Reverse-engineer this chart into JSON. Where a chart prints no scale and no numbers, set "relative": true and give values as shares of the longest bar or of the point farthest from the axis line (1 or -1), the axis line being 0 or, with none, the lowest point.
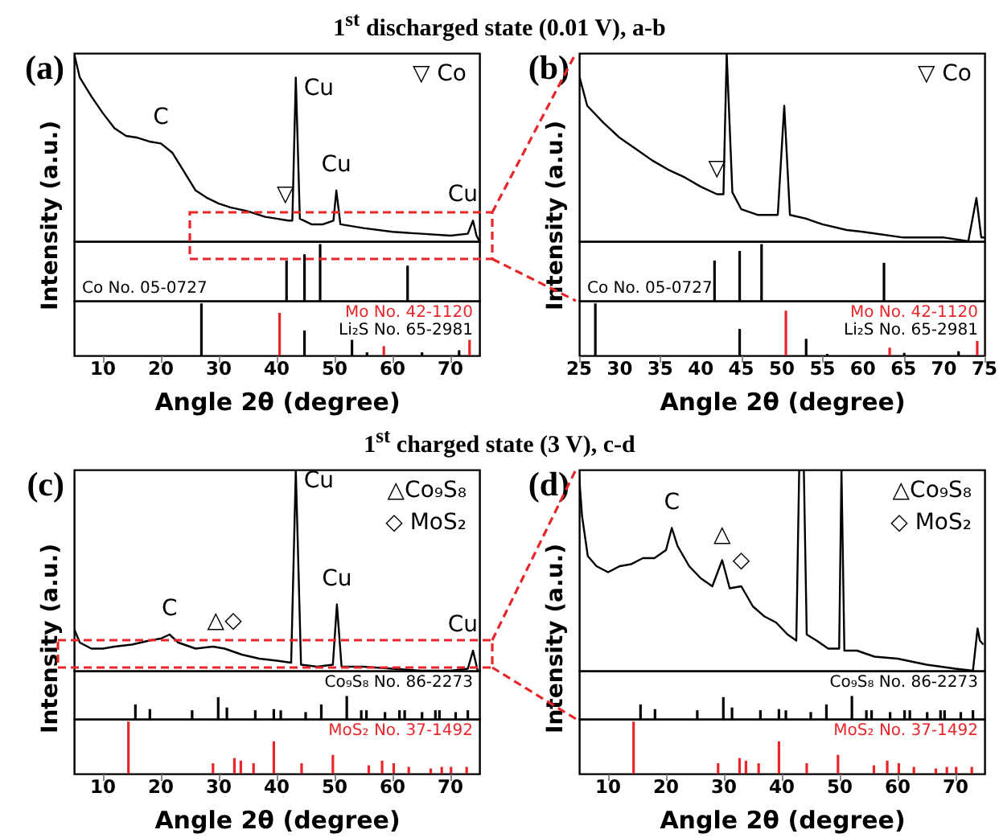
{
  "chart_data": [
    {
      "type": "line",
      "relative": true,
      "title": "1$^{st}$ discharged state (0.01 V), a-b",
      "ylabel": "Intensity (a.u.)",
      "xlim": [
        5,
        75
      ],
      "tick_labels": false,
      "x": [
        5,
        6,
        8,
        10,
        12,
        14,
        16,
        18,
        20,
        22,
        24,
        26,
        28,
        30,
        32,
        35,
        38,
        40,
        42,
        42.7,
        43.3,
        44.0,
        46,
        48,
        49.8,
        50.3,
        51,
        55,
        60,
        65,
        70,
        73,
        73.9,
        74.5,
        75
      ],
      "series": [
        {
          "color": "#000000",
          "values": [
            1.0,
            0.87,
            0.77,
            0.68,
            0.6,
            0.56,
            0.55,
            0.53,
            0.52,
            0.47,
            0.37,
            0.27,
            0.23,
            0.2,
            0.18,
            0.16,
            0.13,
            0.12,
            0.11,
            0.11,
            0.87,
            0.12,
            0.09,
            0.09,
            0.11,
            0.27,
            0.09,
            0.07,
            0.05,
            0.04,
            0.03,
            0.04,
            0.11,
            0.03,
            0
          ]
        }
      ],
      "annotations": [
        "(a)",
        "▽ Co",
        {
          "text": "C",
          "x": 20,
          "y": 0.52
        },
        {
          "text": "▽",
          "x": 41.5,
          "y": 0.11
        },
        {
          "text": "Cu",
          "x": 43.3,
          "y": 0.87
        },
        {
          "text": "Cu",
          "x": 50.3,
          "y": 0.27
        },
        {
          "text": "Cu",
          "x": 73.9,
          "y": 0.11
        }
      ]
    },
    {
      "type": "bar",
      "relative": true,
      "xlim": [
        5,
        75
      ],
      "tick_labels": false,
      "series": [
        {
          "name": "Co No. 05-0727",
          "color": "#000000",
          "x": [
            41.7,
            44.8,
            47.5,
            62.6
          ],
          "values": [
            0.71,
            0.82,
            1,
            0.62
          ]
        }
      ]
    },
    {
      "type": "bar",
      "relative": true,
      "xlim": [
        5,
        75
      ],
      "xticks": [
        10,
        20,
        30,
        40,
        50,
        60,
        70
      ],
      "xlabel": "Angle 2θ (degree)",
      "tick_labels": "x",
      "series": [
        {
          "name": "Mo No. 42-1120",
          "color": "#e8262a",
          "x": [
            40.5,
            58.5,
            73.3
          ],
          "values": [
            0.82,
            0.18,
            0.3
          ]
        },
        {
          "name": "Li₂S No. 65-2981",
          "color": "#000000",
          "x": [
            27.0,
            44.8,
            53.0,
            55.6,
            65.1,
            71.5
          ],
          "values": [
            1,
            0.48,
            0.3,
            0.06,
            0.06,
            0.1
          ]
        }
      ]
    },
    {
      "type": "line",
      "relative": true,
      "ylabel": "Intensity (a.u.)",
      "xlim": [
        25,
        75
      ],
      "tick_labels": false,
      "x": [
        25,
        26,
        28,
        30,
        32,
        34,
        36,
        38,
        40,
        42,
        42.8,
        43.2,
        43.9,
        45,
        47,
        49.5,
        50.3,
        51,
        53,
        55,
        58,
        60,
        65,
        70,
        73,
        74,
        74.6,
        75
      ],
      "series": [
        {
          "color": "#000000",
          "values": [
            0.88,
            0.72,
            0.63,
            0.55,
            0.49,
            0.43,
            0.38,
            0.34,
            0.29,
            0.25,
            0.25,
            1.0,
            0.26,
            0.17,
            0.14,
            0.14,
            0.72,
            0.14,
            0.12,
            0.09,
            0.06,
            0.05,
            0.02,
            0.02,
            0,
            0.23,
            0.02,
            0.02
          ]
        }
      ],
      "annotations": [
        "(b)",
        "▽ Co",
        {
          "text": "▽",
          "x": 42,
          "y": 0.25
        }
      ]
    },
    {
      "type": "bar",
      "relative": true,
      "xlim": [
        25,
        75
      ],
      "tick_labels": false,
      "series": [
        {
          "name": "Co No. 05-0727",
          "color": "#000000",
          "x": [
            41.7,
            44.8,
            47.5,
            62.6
          ],
          "values": [
            0.71,
            0.88,
            1,
            0.67
          ]
        }
      ]
    },
    {
      "type": "bar",
      "relative": true,
      "xlim": [
        25,
        75
      ],
      "xticks": [
        25,
        30,
        35,
        40,
        45,
        50,
        55,
        60,
        65,
        70,
        75
      ],
      "xlabel": "Angle 2θ (degree)",
      "tick_labels": "x",
      "series": [
        {
          "name": "Mo No. 42-1120",
          "color": "#e8262a",
          "x": [
            50.5,
            63.3,
            74.1
          ],
          "values": [
            0.86,
            0.15,
            0.28
          ]
        },
        {
          "name": "Li₂S No. 65-2981",
          "color": "#000000",
          "x": [
            27.0,
            44.8,
            53.0,
            55.6,
            65.1,
            71.8
          ],
          "values": [
            1,
            0.51,
            0.32,
            0.03,
            0.05,
            0.08
          ]
        }
      ]
    },
    {
      "type": "line",
      "relative": true,
      "title": "1$^{st}$ charged state (3 V), c-d",
      "ylabel": "Intensity (a.u.)",
      "xlim": [
        5,
        75
      ],
      "tick_labels": false,
      "x": [
        5,
        6,
        8,
        10,
        12,
        15,
        18,
        20,
        21.5,
        23,
        26,
        29,
        31,
        34,
        37,
        40,
        42.5,
        43.3,
        44.2,
        47,
        49.7,
        50.4,
        51.2,
        55,
        60,
        65,
        70,
        73,
        73.9,
        74.7
      ],
      "series": [
        {
          "color": "#000000",
          "values": [
            0.21,
            0.14,
            0.11,
            0.11,
            0.12,
            0.13,
            0.15,
            0.16,
            0.18,
            0.14,
            0.11,
            0.12,
            0.11,
            0.08,
            0.06,
            0.05,
            0.04,
            1.0,
            0.03,
            0.02,
            0.03,
            0.33,
            0.02,
            0.02,
            0.01,
            0,
            0,
            0.01,
            0.1,
            0
          ]
        }
      ],
      "annotations": [
        "(c)",
        "△Co₉S₈",
        "◇ MoS₂",
        {
          "text": "C",
          "x": 21.5,
          "y": 0.18
        },
        {
          "text": "△",
          "x": 29.5,
          "y": 0.12
        },
        {
          "text": "◇",
          "x": 32.5,
          "y": 0.12
        },
        {
          "text": "Cu",
          "x": 43.3,
          "y": 1.0
        },
        {
          "text": "Cu",
          "x": 50.4,
          "y": 0.33
        },
        {
          "text": "Cu",
          "x": 73.9,
          "y": 0.1
        }
      ]
    },
    {
      "type": "bar",
      "relative": true,
      "xlim": [
        5,
        75
      ],
      "tick_labels": false,
      "series": [
        {
          "name": "Co₉S₈ No. 86-2273",
          "color": "#000000",
          "x": [
            15.6,
            18.1,
            25.4,
            29.9,
            31.4,
            36.3,
            39.5,
            40.7,
            45.0,
            47.7,
            52.1,
            54.6,
            55.5,
            58.7,
            61.2,
            62.1,
            65.1,
            67.4,
            68.1,
            70.9,
            73.0
          ],
          "values": [
            0.63,
            0.43,
            0.38,
            0.95,
            0.5,
            0.38,
            0.43,
            0.38,
            0.3,
            0.63,
            1,
            0.38,
            0.38,
            0.3,
            0.38,
            0.38,
            0.3,
            0.38,
            0.38,
            0.3,
            0.38
          ]
        }
      ]
    },
    {
      "type": "bar",
      "relative": true,
      "xlim": [
        5,
        75
      ],
      "xticks": [
        10,
        20,
        30,
        40,
        50,
        60,
        70
      ],
      "xlabel": "Angle 2θ (degree)",
      "tick_labels": "x",
      "series": [
        {
          "name": "MoS₂ No. 37-1492",
          "color": "#e8262a",
          "x": [
            14.4,
            29.0,
            32.7,
            33.8,
            36.0,
            39.5,
            44.3,
            49.7,
            55.9,
            58.2,
            60.2,
            62.8,
            66.6,
            68.5,
            70.1,
            72.8
          ],
          "values": [
            1,
            0.2,
            0.3,
            0.25,
            0.2,
            0.62,
            0.2,
            0.36,
            0.16,
            0.25,
            0.2,
            0.13,
            0.1,
            0.13,
            0.13,
            0.13
          ]
        }
      ]
    },
    {
      "type": "line",
      "relative": true,
      "ylabel": "Intensity (a.u.)",
      "xlim": [
        5,
        75
      ],
      "tick_labels": false,
      "x": [
        5,
        5.5,
        6.5,
        8,
        10,
        12,
        14,
        16,
        18,
        20,
        21,
        22,
        24,
        26,
        28,
        29.7,
        31,
        33,
        35,
        37,
        39,
        41,
        42.5,
        43.0,
        43.8,
        44.3,
        46,
        48,
        49.9,
        50.3,
        50.8,
        53,
        56,
        60,
        65,
        70,
        73,
        73.8,
        74.2,
        74.8
      ],
      "series": [
        {
          "color": "#000000",
          "values": [
            0.97,
            0.77,
            0.57,
            0.52,
            0.49,
            0.52,
            0.53,
            0.56,
            0.56,
            0.6,
            0.71,
            0.62,
            0.52,
            0.46,
            0.42,
            0.55,
            0.41,
            0.42,
            0.32,
            0.27,
            0.24,
            0.18,
            0.15,
            1,
            1,
            0.18,
            0.15,
            0.11,
            0.11,
            1,
            0.1,
            0.1,
            0.07,
            0.06,
            0.03,
            0.01,
            0,
            0.21,
            0.15,
            0.13
          ]
        }
      ],
      "annotations": [
        "(d)",
        "△Co₉S₈",
        "◇ MoS₂",
        {
          "text": "C",
          "x": 21,
          "y": 0.71
        },
        {
          "text": "△",
          "x": 29.7,
          "y": 0.55
        },
        {
          "text": "◇",
          "x": 33,
          "y": 0.42
        }
      ]
    },
    {
      "type": "bar",
      "relative": true,
      "xlim": [
        5,
        75
      ],
      "tick_labels": false,
      "series": [
        {
          "name": "Co₉S₈ No. 86-2273",
          "color": "#000000",
          "x": [
            15.6,
            18.1,
            25.4,
            29.9,
            31.4,
            36.3,
            39.5,
            40.7,
            45.0,
            47.7,
            52.1,
            54.6,
            55.5,
            58.7,
            61.2,
            62.1,
            65.1,
            67.4,
            68.1,
            70.9,
            73.0
          ],
          "values": [
            0.63,
            0.43,
            0.38,
            0.95,
            0.5,
            0.38,
            0.43,
            0.38,
            0.3,
            0.63,
            1,
            0.38,
            0.38,
            0.3,
            0.38,
            0.38,
            0.3,
            0.38,
            0.38,
            0.3,
            0.38
          ]
        }
      ]
    },
    {
      "type": "bar",
      "relative": true,
      "xlim": [
        5,
        75
      ],
      "xticks": [
        10,
        20,
        30,
        40,
        50,
        60,
        70
      ],
      "xlabel": "Angle 2θ (degree)",
      "tick_labels": "x",
      "series": [
        {
          "name": "MoS₂ No. 37-1492",
          "color": "#e8262a",
          "x": [
            14.4,
            29.0,
            32.7,
            33.8,
            36.0,
            39.5,
            44.3,
            49.7,
            55.9,
            58.2,
            60.2,
            62.8,
            66.6,
            68.5,
            70.1,
            72.8
          ],
          "values": [
            1,
            0.2,
            0.3,
            0.25,
            0.2,
            0.62,
            0.2,
            0.36,
            0.16,
            0.25,
            0.2,
            0.13,
            0.1,
            0.13,
            0.13,
            0.13
          ]
        }
      ]
    }
  ]
}
